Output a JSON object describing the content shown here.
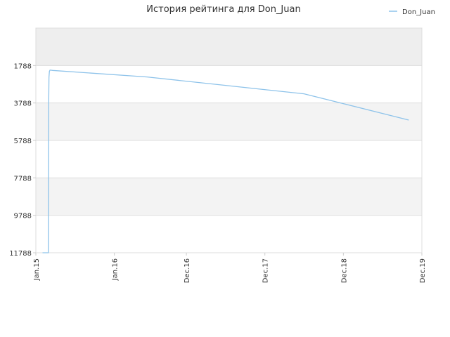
{
  "chart_data": {
    "type": "line",
    "title": "История рейтинга для Don_Juan",
    "xlabel": "",
    "ylabel": "",
    "y_axis_inverted": true,
    "ylim": [
      11788,
      -212
    ],
    "y_ticks": [
      1788,
      3788,
      5788,
      7788,
      9788,
      11788
    ],
    "y_tick_labels": [
      "1788",
      "3788",
      "5788",
      "7788",
      "9788",
      "11788"
    ],
    "x_ticks": [
      "2015-01-01",
      "2016-01-01",
      "2016-12-01",
      "2017-12-01",
      "2018-12-01",
      "2019-12-01"
    ],
    "x_tick_labels": [
      "Jan.15",
      "Jan.16",
      "Dec.16",
      "Dec.17",
      "Dec.18",
      "Dec.19"
    ],
    "xlim": [
      "2015-01-01",
      "2019-12-01"
    ],
    "grid": true,
    "legend_position": "top-right",
    "series": [
      {
        "name": "Don_Juan",
        "color": "#8ec3ea",
        "x": [
          "2015-02-01",
          "2015-02-28",
          "2015-03-01",
          "2015-03-02",
          "2015-03-03",
          "2015-03-05",
          "2015-03-08",
          "2015-03-20",
          "2016-06-01",
          "2017-06-01",
          "2018-06-01",
          "2019-10-01"
        ],
        "y": [
          11788,
          11788,
          5500,
          3500,
          2400,
          2100,
          2030,
          2050,
          2400,
          2850,
          3300,
          4700
        ]
      }
    ]
  }
}
